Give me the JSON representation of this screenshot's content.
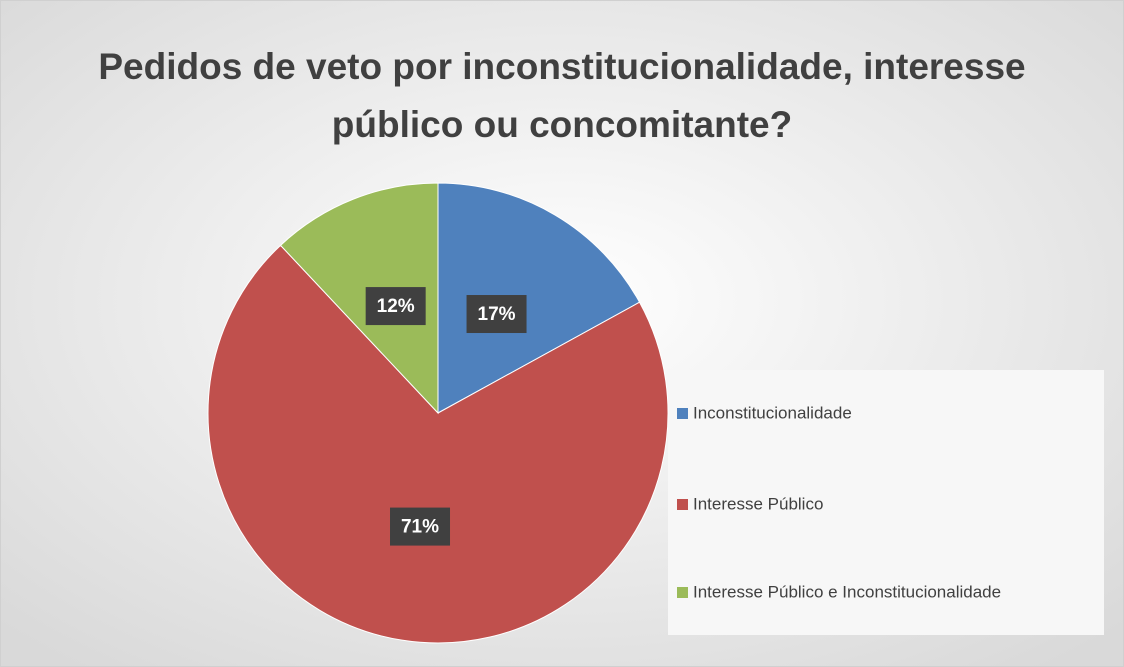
{
  "chart_data": {
    "type": "pie",
    "title": "Pedidos de veto por inconstitucionalidade, interesse público ou concomitante?",
    "categories": [
      "Inconstitucionalidade",
      "Interesse Público",
      "Interesse Público e Inconstitucionalidade"
    ],
    "values": [
      17,
      71,
      12
    ],
    "value_labels": [
      "17%",
      "71%",
      "12%"
    ],
    "colors": [
      "#4f81bd",
      "#c0504d",
      "#9bbb59"
    ],
    "legend": "right"
  }
}
